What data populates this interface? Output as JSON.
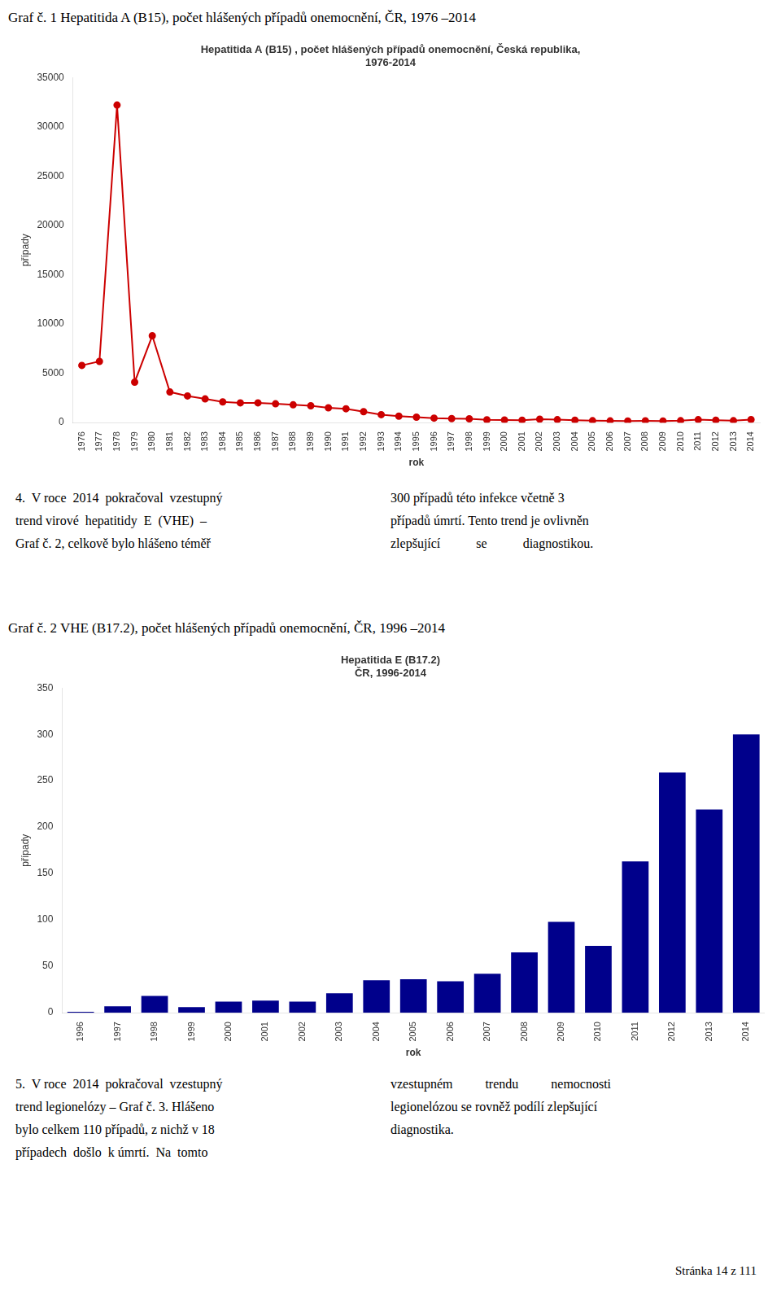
{
  "chart_data": [
    {
      "type": "line",
      "title": [
        "Hepatitida A (B15) , počet hlášených případů onemocnění, Česká republika,",
        "1976-2014"
      ],
      "xlabel": "rok",
      "ylabel": "případy",
      "x": [
        1976,
        1977,
        1978,
        1979,
        1980,
        1981,
        1982,
        1983,
        1984,
        1985,
        1986,
        1987,
        1988,
        1989,
        1990,
        1991,
        1992,
        1993,
        1994,
        1995,
        1996,
        1997,
        1998,
        1999,
        2000,
        2001,
        2002,
        2003,
        2004,
        2005,
        2006,
        2007,
        2008,
        2009,
        2010,
        2011,
        2012,
        2013,
        2014
      ],
      "values": [
        5800,
        6200,
        32200,
        4100,
        8800,
        3100,
        2700,
        2400,
        2100,
        2000,
        2000,
        1900,
        1800,
        1700,
        1500,
        1400,
        1100,
        800,
        650,
        550,
        450,
        400,
        380,
        280,
        260,
        240,
        340,
        290,
        240,
        190,
        170,
        155,
        175,
        165,
        190,
        290,
        240,
        190,
        295
      ],
      "color": "#CC0000",
      "marker": "circle",
      "xlim": [
        1975.5,
        2014.5
      ],
      "xticks": [
        1976,
        1977,
        1978,
        1979,
        1980,
        1981,
        1982,
        1983,
        1984,
        1985,
        1986,
        1987,
        1988,
        1989,
        1990,
        1991,
        1992,
        1993,
        1994,
        1995,
        1996,
        1997,
        1998,
        1999,
        2000,
        2001,
        2002,
        2003,
        2004,
        2005,
        2006,
        2007,
        2008,
        2009,
        2010,
        2011,
        2012,
        2013,
        2014
      ],
      "ylim": [
        0,
        35000
      ],
      "yticks": [
        0,
        5000,
        10000,
        15000,
        20000,
        25000,
        30000,
        35000
      ],
      "grid": false
    },
    {
      "type": "bar",
      "title": [
        "Hepatitida E (B17.2)",
        "ČR, 1996-2014"
      ],
      "xlabel": "rok",
      "ylabel": "případy",
      "categories": [
        1996,
        1997,
        1998,
        1999,
        2000,
        2001,
        2002,
        2003,
        2004,
        2005,
        2006,
        2007,
        2008,
        2009,
        2010,
        2011,
        2012,
        2013,
        2014
      ],
      "values": [
        1,
        7,
        18,
        6,
        12,
        13,
        12,
        21,
        35,
        36,
        34,
        42,
        65,
        98,
        72,
        163,
        259,
        219,
        300
      ],
      "color": "#00008B",
      "ylim": [
        0,
        350
      ],
      "yticks": [
        0,
        50,
        100,
        150,
        200,
        250,
        300,
        350
      ],
      "grid": false
    }
  ],
  "headings": [
    "Graf č. 1 Hepatitida A (B15), počet hlášených případů onemocnění, ČR, 1976 –2014",
    "Graf č. 2 VHE (B17.2), počet hlášených případů onemocnění, ČR, 1996 –2014"
  ],
  "paragraphs": [
    [
      [
        "4.  V roce  2014  pokračoval  vzestupný",
        "trend virové  hepatitidy  E  (VHE)  –",
        "Graf č. 2, celkově bylo hlášeno téměř"
      ],
      [
        "300 případů této infekce včetně 3",
        "případů úmrtí. Tento trend je ovlivněn",
        "zlepšující           se           diagnostikou."
      ]
    ],
    [
      [
        "5.  V roce  2014  pokračoval  vzestupný",
        "trend legionelózy – Graf č. 3. Hlášeno",
        "bylo celkem 110 případů, z nichž v 18",
        "případech  došlo  k úmrtí.  Na  tomto"
      ],
      [
        "vzestupném          trendu          nemocnosti",
        "legionelózou se rovněž podílí zlepšující",
        "diagnostika."
      ]
    ]
  ],
  "footer": "Stránka 14 z 111"
}
